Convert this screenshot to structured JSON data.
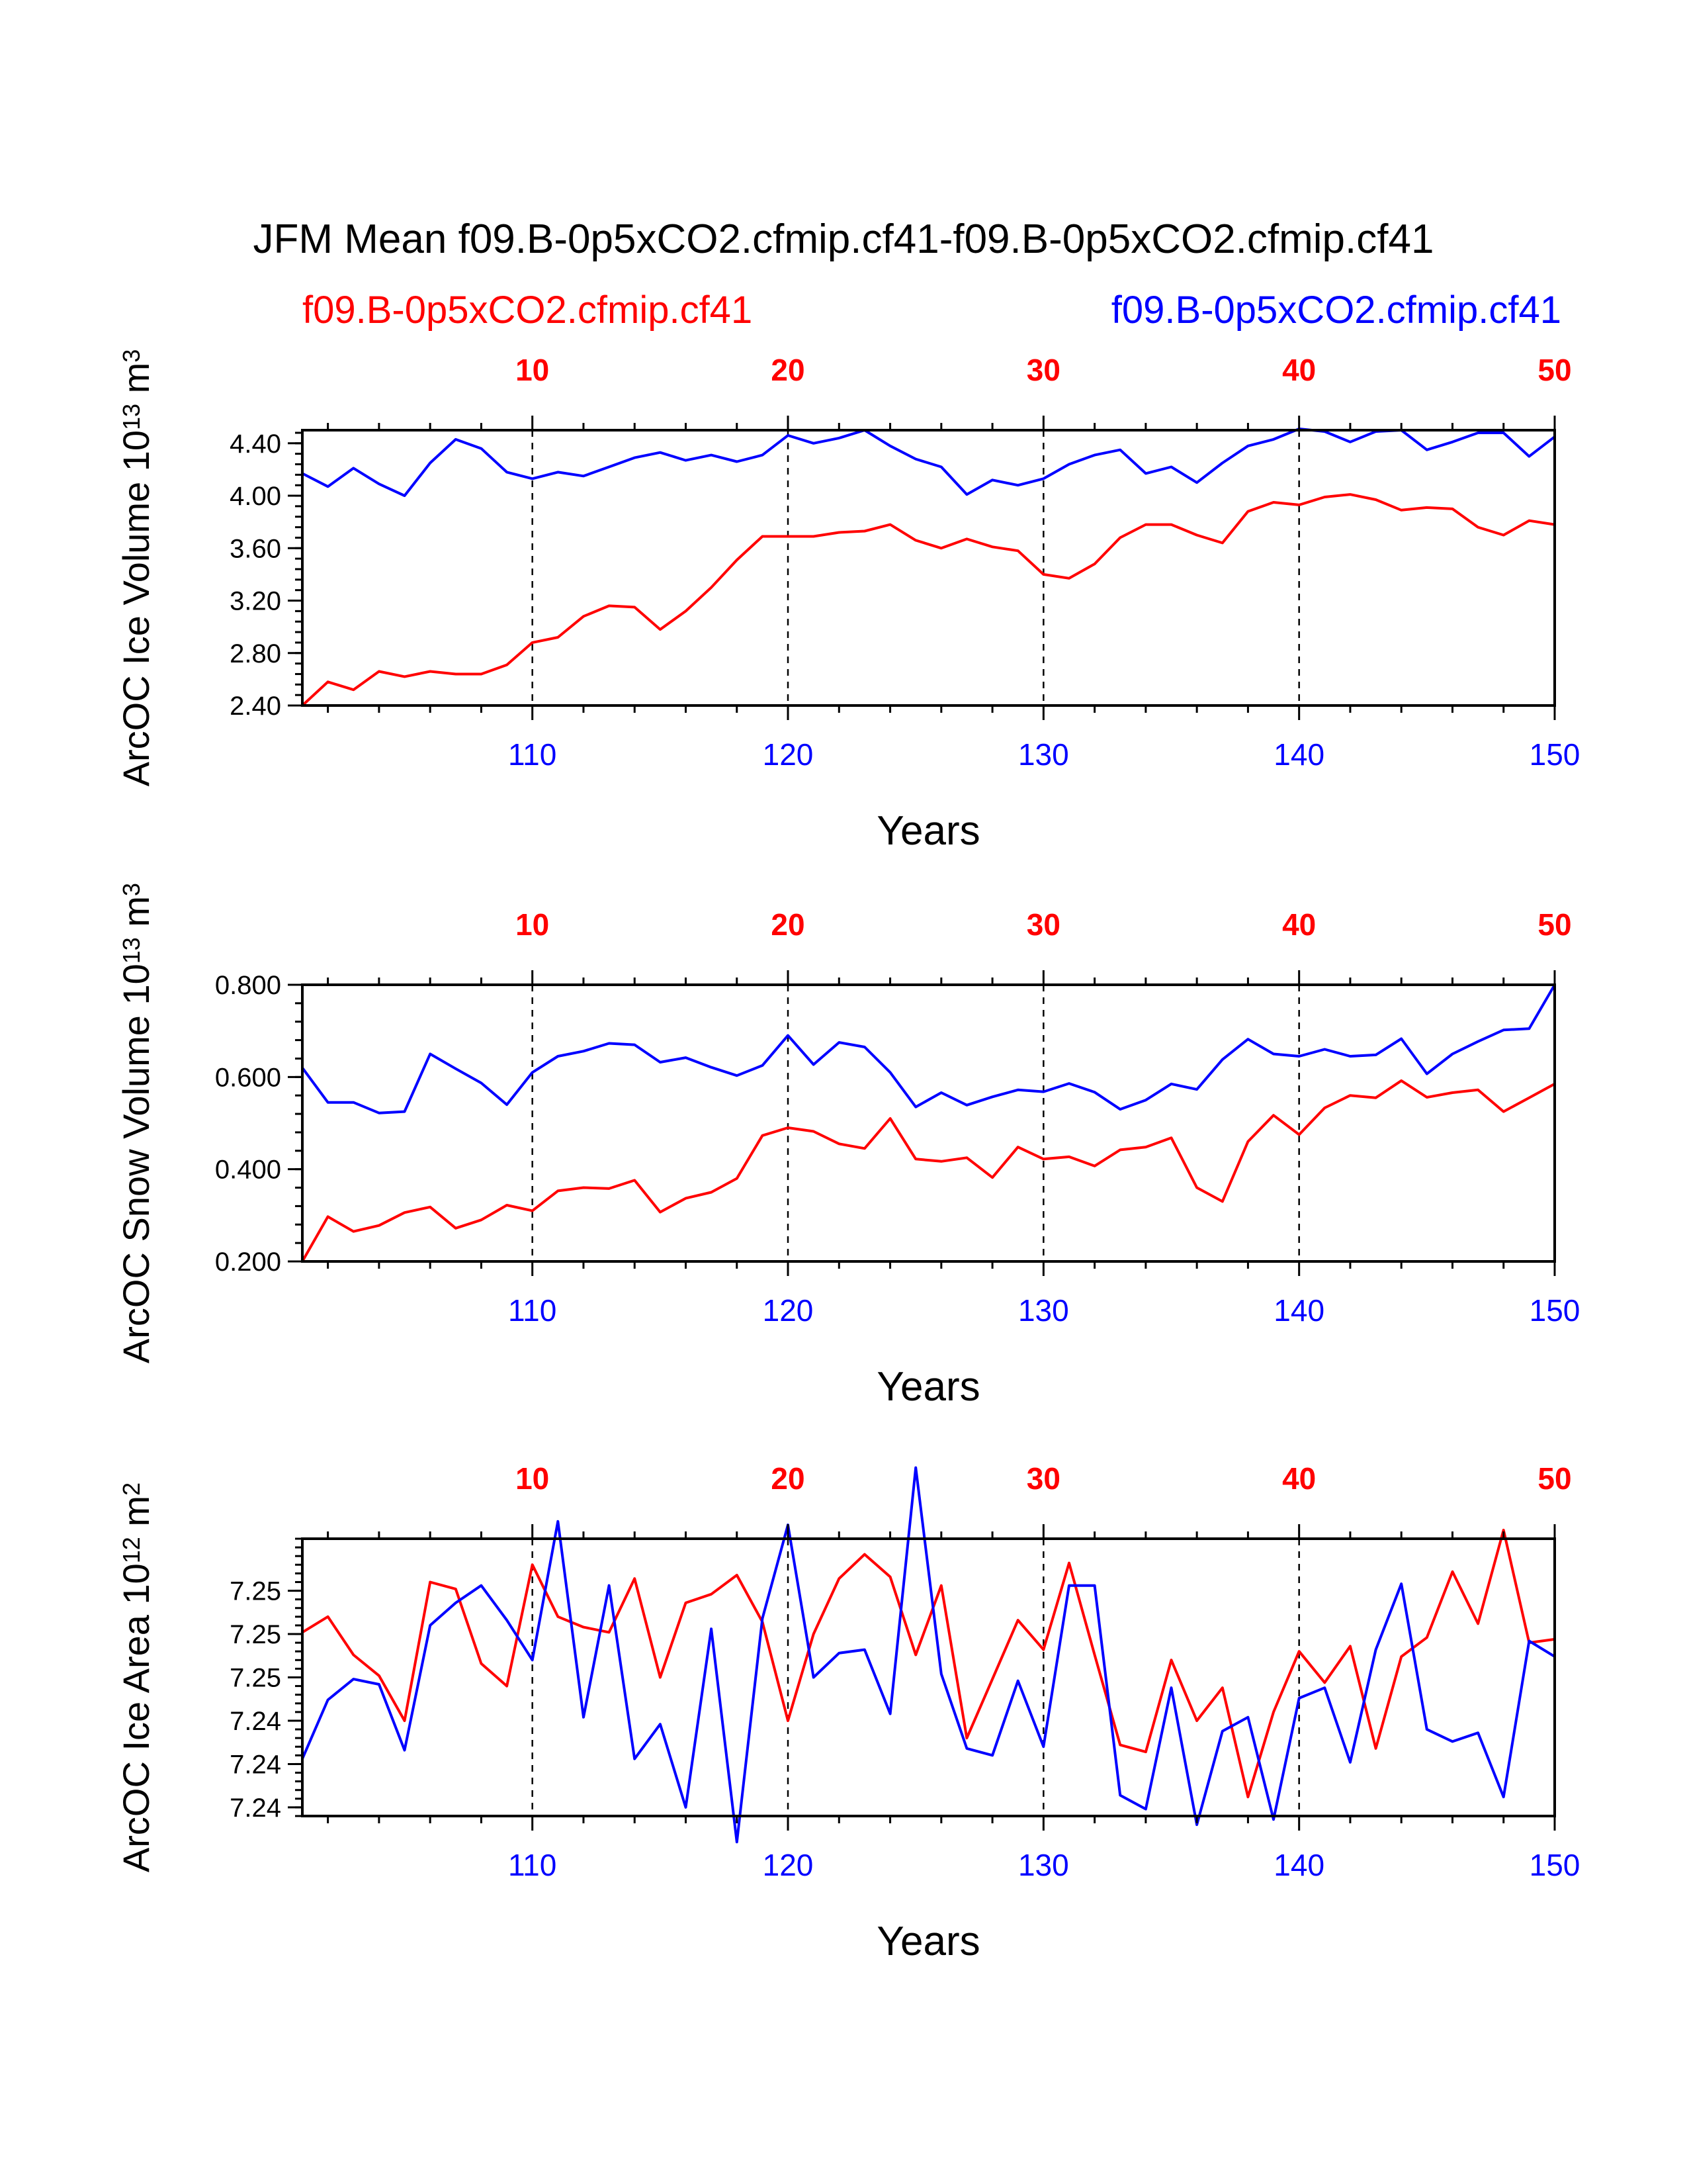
{
  "title": "JFM Mean f09.B-0p5xCO2.cfmip.cf41-f09.B-0p5xCO2.cfmip.cf41",
  "legend": {
    "red_label": "f09.B-0p5xCO2.cfmip.cf41",
    "blue_label": "f09.B-0p5xCO2.cfmip.cf41"
  },
  "colors": {
    "case1": "#ff0000",
    "case2": "#0000ff",
    "axis": "#000000"
  },
  "chart_data": [
    {
      "type": "line",
      "title": "",
      "xlabel": "Years",
      "ylabel": "ArcOC Ice Volume 10",
      "ylabel_exp": "13",
      "ylabel_unit": " m",
      "ylabel_unit_exp": "3",
      "xlim": [
        101,
        150
      ],
      "ylim": [
        2.4,
        4.5
      ],
      "yticks": [
        2.4,
        2.8,
        3.2,
        3.6,
        4.0,
        4.4
      ],
      "ytick_labels": [
        "2.40",
        "2.80",
        "3.20",
        "3.60",
        "4.00",
        "4.40"
      ],
      "xticks_bottom": [
        110,
        120,
        130,
        140,
        150
      ],
      "xtick_labels_bottom": [
        "110",
        "120",
        "130",
        "140",
        "150"
      ],
      "xtick_labels_top": [
        "10",
        "20",
        "30",
        "40",
        "50"
      ],
      "grid": "vertical dashed at 110, 120, 130, 140",
      "x_start": 101,
      "series": [
        {
          "name": "f09.B-0p5xCO2.cfmip.cf41",
          "color": "#ff0000",
          "values": [
            2.4,
            2.58,
            2.52,
            2.66,
            2.62,
            2.66,
            2.64,
            2.64,
            2.71,
            2.88,
            2.92,
            3.08,
            3.16,
            3.15,
            2.98,
            3.12,
            3.3,
            3.51,
            3.69,
            3.69,
            3.69,
            3.72,
            3.73,
            3.78,
            3.66,
            3.6,
            3.67,
            3.61,
            3.58,
            3.4,
            3.37,
            3.48,
            3.68,
            3.78,
            3.78,
            3.7,
            3.64,
            3.88,
            3.95,
            3.93,
            3.99,
            4.01,
            3.97,
            3.89,
            3.91,
            3.9,
            3.76,
            3.7,
            3.81,
            3.78
          ]
        },
        {
          "name": "f09.B-0p5xCO2.cfmip.cf41",
          "color": "#0000ff",
          "values": [
            4.17,
            4.07,
            4.21,
            4.09,
            4.0,
            4.25,
            4.43,
            4.36,
            4.18,
            4.13,
            4.18,
            4.15,
            4.22,
            4.29,
            4.33,
            4.27,
            4.31,
            4.26,
            4.31,
            4.46,
            4.4,
            4.44,
            4.5,
            4.38,
            4.28,
            4.22,
            4.01,
            4.12,
            4.08,
            4.13,
            4.24,
            4.31,
            4.35,
            4.17,
            4.22,
            4.1,
            4.25,
            4.38,
            4.43,
            4.51,
            4.49,
            4.41,
            4.49,
            4.5,
            4.35,
            4.41,
            4.48,
            4.48,
            4.3,
            4.45
          ]
        }
      ]
    },
    {
      "type": "line",
      "title": "",
      "xlabel": "Years",
      "ylabel": "ArcOC Snow Volume 10",
      "ylabel_exp": "13",
      "ylabel_unit": " m",
      "ylabel_unit_exp": "3",
      "xlim": [
        101,
        150
      ],
      "ylim": [
        0.2,
        0.8
      ],
      "yticks": [
        0.2,
        0.4,
        0.6,
        0.8
      ],
      "ytick_labels": [
        "0.200",
        "0.400",
        "0.600",
        "0.800"
      ],
      "xticks_bottom": [
        110,
        120,
        130,
        140,
        150
      ],
      "xtick_labels_bottom": [
        "110",
        "120",
        "130",
        "140",
        "150"
      ],
      "xtick_labels_top": [
        "10",
        "20",
        "30",
        "40",
        "50"
      ],
      "grid": "vertical dashed at 110, 120, 130, 140",
      "x_start": 101,
      "series": [
        {
          "name": "f09.B-0p5xCO2.cfmip.cf41",
          "color": "#ff0000",
          "values": [
            0.2,
            0.297,
            0.265,
            0.278,
            0.306,
            0.318,
            0.272,
            0.29,
            0.322,
            0.31,
            0.353,
            0.36,
            0.358,
            0.376,
            0.307,
            0.337,
            0.35,
            0.38,
            0.473,
            0.49,
            0.482,
            0.455,
            0.445,
            0.51,
            0.422,
            0.417,
            0.425,
            0.382,
            0.448,
            0.422,
            0.427,
            0.407,
            0.442,
            0.448,
            0.468,
            0.36,
            0.33,
            0.46,
            0.517,
            0.475,
            0.533,
            0.56,
            0.555,
            0.592,
            0.556,
            0.566,
            0.572,
            0.525,
            0.555,
            0.585
          ]
        },
        {
          "name": "f09.B-0p5xCO2.cfmip.cf41",
          "color": "#0000ff",
          "values": [
            0.62,
            0.545,
            0.545,
            0.522,
            0.525,
            0.65,
            0.618,
            0.587,
            0.54,
            0.61,
            0.645,
            0.656,
            0.673,
            0.67,
            0.632,
            0.642,
            0.621,
            0.603,
            0.625,
            0.69,
            0.627,
            0.675,
            0.665,
            0.61,
            0.535,
            0.566,
            0.539,
            0.557,
            0.572,
            0.568,
            0.586,
            0.567,
            0.53,
            0.55,
            0.585,
            0.573,
            0.638,
            0.682,
            0.65,
            0.645,
            0.66,
            0.645,
            0.648,
            0.683,
            0.607,
            0.65,
            0.677,
            0.702,
            0.705,
            0.8
          ]
        }
      ]
    },
    {
      "type": "line",
      "title": "",
      "xlabel": "Years",
      "ylabel": "ArcOC Ice Area 10",
      "ylabel_exp": "12",
      "ylabel_unit": " m",
      "ylabel_unit_exp": "2",
      "xlim": [
        101,
        150
      ],
      "ylim": [
        7.2375,
        7.2535
      ],
      "yticks": [
        7.238,
        7.2405,
        7.243,
        7.2455,
        7.248,
        7.2505
      ],
      "ytick_labels": [
        "7.24",
        "7.24",
        "7.24",
        "7.25",
        "7.25",
        "7.25"
      ],
      "xticks_bottom": [
        110,
        120,
        130,
        140,
        150
      ],
      "xtick_labels_bottom": [
        "110",
        "120",
        "130",
        "140",
        "150"
      ],
      "xtick_labels_top": [
        "10",
        "20",
        "30",
        "40",
        "50"
      ],
      "grid": "vertical dashed at 110, 120, 130, 140",
      "x_start": 101,
      "series": [
        {
          "name": "f09.B-0p5xCO2.cfmip.cf41",
          "color": "#ff0000",
          "values": [
            7.2481,
            7.249,
            7.2468,
            7.2456,
            7.243,
            7.251,
            7.2506,
            7.2463,
            7.245,
            7.252,
            7.249,
            7.2484,
            7.2481,
            7.2512,
            7.2455,
            7.2498,
            7.2503,
            7.2514,
            7.2487,
            7.243,
            7.248,
            7.2512,
            7.2526,
            7.2513,
            7.2468,
            7.2508,
            7.242,
            7.2454,
            7.2488,
            7.2471,
            7.2521,
            7.2468,
            7.2416,
            7.2412,
            7.2465,
            7.243,
            7.2449,
            7.2386,
            7.2435,
            7.247,
            7.2452,
            7.2473,
            7.2414,
            7.2467,
            7.2478,
            7.2516,
            7.2486,
            7.254,
            7.2475,
            7.2477
          ]
        },
        {
          "name": "f09.B-0p5xCO2.cfmip.cf41",
          "color": "#0000ff",
          "values": [
            7.2408,
            7.2442,
            7.2454,
            7.2451,
            7.2413,
            7.2485,
            7.2498,
            7.2508,
            7.2488,
            7.2465,
            7.2545,
            7.2432,
            7.2508,
            7.2408,
            7.2428,
            7.238,
            7.2483,
            7.236,
            7.2489,
            7.2543,
            7.2455,
            7.2469,
            7.2471,
            7.2434,
            7.2576,
            7.2457,
            7.2414,
            7.241,
            7.2453,
            7.2415,
            7.2508,
            7.2508,
            7.2387,
            7.2379,
            7.2449,
            7.237,
            7.2424,
            7.2432,
            7.2373,
            7.2443,
            7.2449,
            7.2406,
            7.2471,
            7.2509,
            7.2425,
            7.2418,
            7.2423,
            7.2386,
            7.2476,
            7.2467
          ]
        }
      ]
    }
  ]
}
